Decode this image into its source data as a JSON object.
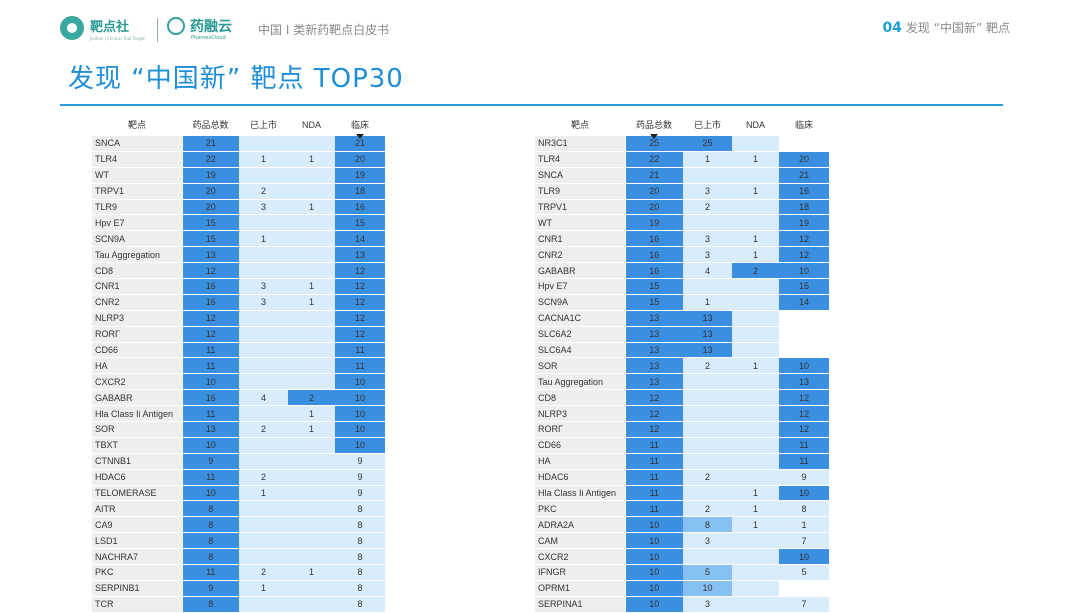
{
  "header": {
    "brand1": "靶点社",
    "brand1_sub": "Jiedian | Clinical Trial Target",
    "brand2": "药融云",
    "brand2_sub": "PharnexCloud",
    "doc_title": "中国 I 类新药靶点白皮书",
    "section_number": "04",
    "section_title": "发现 “中国新” 靶点"
  },
  "page_title": "发现 “中国新” 靶点 TOP30",
  "colors": {
    "accent": "#1e8fd6",
    "dark_cell": "#3b8fe0",
    "light_cell": "#d9ecfb",
    "name_cell": "#eeeeee"
  },
  "left_table": {
    "headers": [
      "靶点",
      "药品总数",
      "已上市",
      "NDA",
      "临床"
    ],
    "rows": [
      [
        "SNCA",
        "21",
        "",
        "",
        "21"
      ],
      [
        "TLR4",
        "22",
        "1",
        "1",
        "20"
      ],
      [
        "WT",
        "19",
        "",
        "",
        "19"
      ],
      [
        "TRPV1",
        "20",
        "2",
        "",
        "18"
      ],
      [
        "TLR9",
        "20",
        "3",
        "1",
        "16"
      ],
      [
        "Hpv E7",
        "15",
        "",
        "",
        "15"
      ],
      [
        "SCN9A",
        "15",
        "1",
        "",
        "14"
      ],
      [
        "Tau Aggregation",
        "13",
        "",
        "",
        "13"
      ],
      [
        "CD8",
        "12",
        "",
        "",
        "12"
      ],
      [
        "CNR1",
        "16",
        "3",
        "1",
        "12"
      ],
      [
        "CNR2",
        "16",
        "3",
        "1",
        "12"
      ],
      [
        "NLRP3",
        "12",
        "",
        "",
        "12"
      ],
      [
        "RORΓ",
        "12",
        "",
        "",
        "12"
      ],
      [
        "CD66",
        "11",
        "",
        "",
        "11"
      ],
      [
        "HA",
        "11",
        "",
        "",
        "11"
      ],
      [
        "CXCR2",
        "10",
        "",
        "",
        "10"
      ],
      [
        "GABABR",
        "16",
        "4",
        "2",
        "10"
      ],
      [
        "Hla Class Ii Antigen",
        "11",
        "",
        "1",
        "10"
      ],
      [
        "SOR",
        "13",
        "2",
        "1",
        "10"
      ],
      [
        "TBXT",
        "10",
        "",
        "",
        "10"
      ],
      [
        "CTNNB1",
        "9",
        "",
        "",
        "9"
      ],
      [
        "HDAC6",
        "11",
        "2",
        "",
        "9"
      ],
      [
        "TELOMERASE",
        "10",
        "1",
        "",
        "9"
      ],
      [
        "AITR",
        "8",
        "",
        "",
        "8"
      ],
      [
        "CA9",
        "8",
        "",
        "",
        "8"
      ],
      [
        "LSD1",
        "8",
        "",
        "",
        "8"
      ],
      [
        "NACHRA7",
        "8",
        "",
        "",
        "8"
      ],
      [
        "PKC",
        "11",
        "2",
        "1",
        "8"
      ],
      [
        "SERPINB1",
        "9",
        "1",
        "",
        "8"
      ],
      [
        "TCR",
        "8",
        "",
        "",
        "8"
      ]
    ]
  },
  "right_table": {
    "headers": [
      "靶点",
      "药品总数",
      "已上市",
      "NDA",
      "临床"
    ],
    "rows": [
      [
        "NR3C1",
        "25",
        "25",
        "",
        ""
      ],
      [
        "TLR4",
        "22",
        "1",
        "1",
        "20"
      ],
      [
        "SNCA",
        "21",
        "",
        "",
        "21"
      ],
      [
        "TLR9",
        "20",
        "3",
        "1",
        "16"
      ],
      [
        "TRPV1",
        "20",
        "2",
        "",
        "18"
      ],
      [
        "WT",
        "19",
        "",
        "",
        "19"
      ],
      [
        "CNR1",
        "16",
        "3",
        "1",
        "12"
      ],
      [
        "CNR2",
        "16",
        "3",
        "1",
        "12"
      ],
      [
        "GABABR",
        "16",
        "4",
        "2",
        "10"
      ],
      [
        "Hpv E7",
        "15",
        "",
        "",
        "15"
      ],
      [
        "SCN9A",
        "15",
        "1",
        "",
        "14"
      ],
      [
        "CACNA1C",
        "13",
        "13",
        "",
        ""
      ],
      [
        "SLC6A2",
        "13",
        "13",
        "",
        ""
      ],
      [
        "SLC6A4",
        "13",
        "13",
        "",
        ""
      ],
      [
        "SOR",
        "13",
        "2",
        "1",
        "10"
      ],
      [
        "Tau Aggregation",
        "13",
        "",
        "",
        "13"
      ],
      [
        "CD8",
        "12",
        "",
        "",
        "12"
      ],
      [
        "NLRP3",
        "12",
        "",
        "",
        "12"
      ],
      [
        "RORΓ",
        "12",
        "",
        "",
        "12"
      ],
      [
        "CD66",
        "11",
        "",
        "",
        "11"
      ],
      [
        "HA",
        "11",
        "",
        "",
        "11"
      ],
      [
        "HDAC6",
        "11",
        "2",
        "",
        "9"
      ],
      [
        "Hla Class Ii Antigen",
        "11",
        "",
        "1",
        "10"
      ],
      [
        "PKC",
        "11",
        "2",
        "1",
        "8"
      ],
      [
        "ADRA2A",
        "10",
        "8",
        "1",
        "1"
      ],
      [
        "CAM",
        "10",
        "3",
        "",
        "7"
      ],
      [
        "CXCR2",
        "10",
        "",
        "",
        "10"
      ],
      [
        "IFNGR",
        "10",
        "5",
        "",
        "5"
      ],
      [
        "OPRM1",
        "10",
        "10",
        "",
        ""
      ],
      [
        "SERPINA1",
        "10",
        "3",
        "",
        "7"
      ]
    ]
  }
}
